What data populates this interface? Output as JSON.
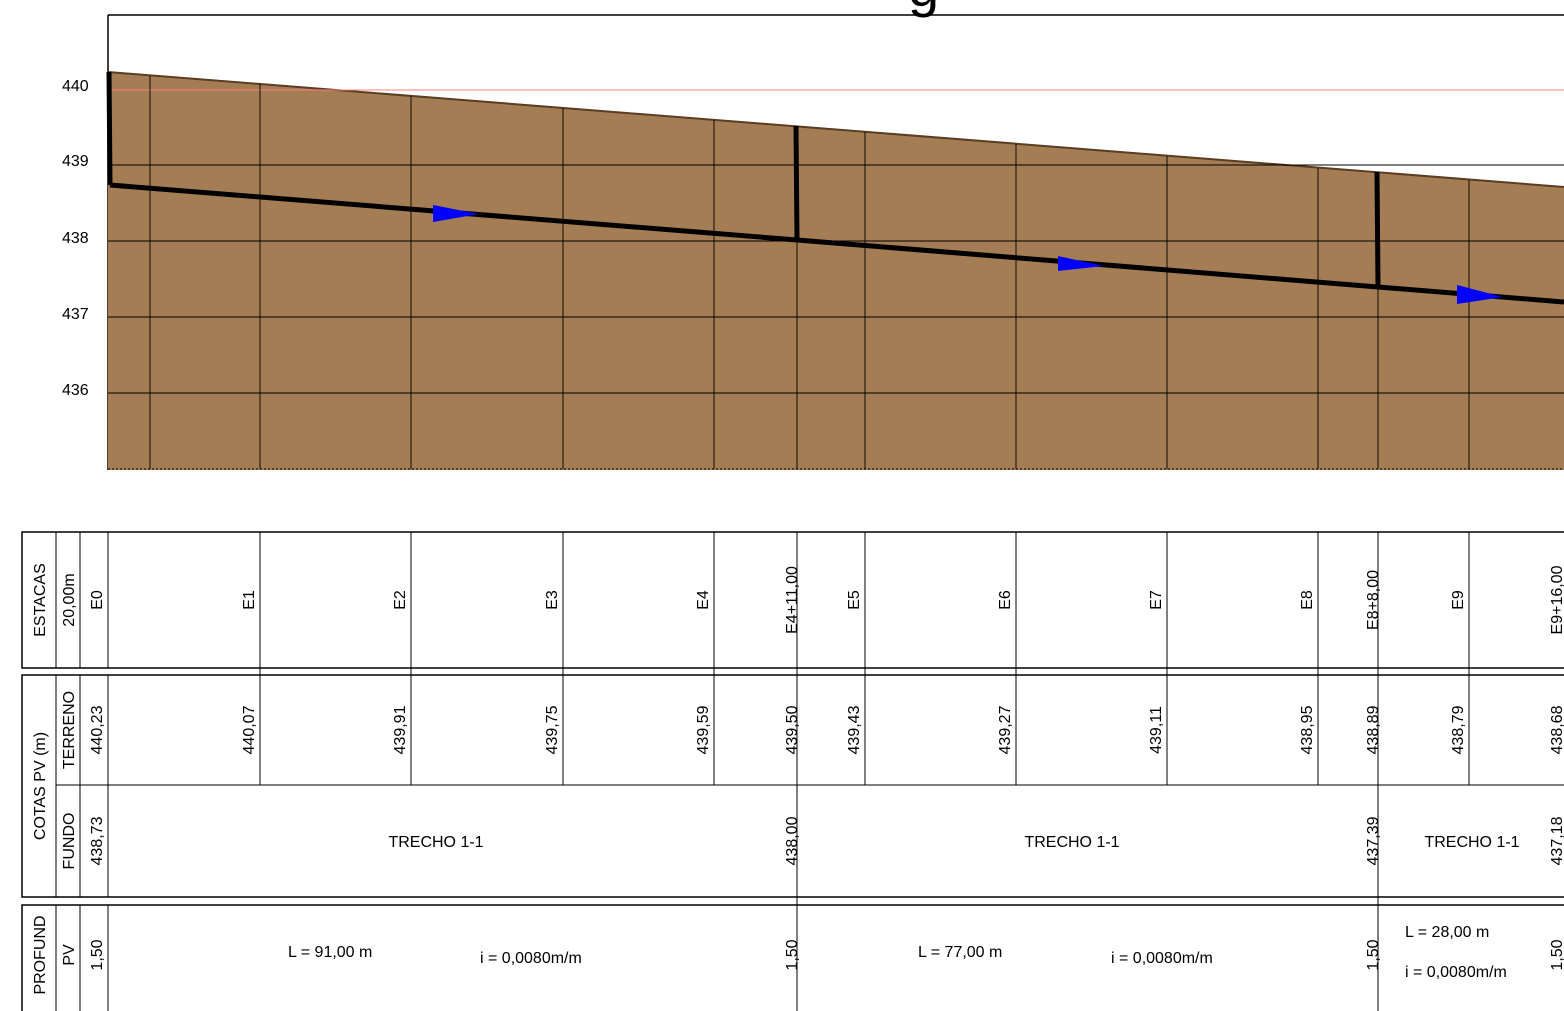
{
  "title_fragment": "g",
  "profile": {
    "elevation_ticks": [
      "440",
      "439",
      "438",
      "437",
      "436"
    ],
    "ground_color": "#A57D55",
    "pipe_color": "#000000",
    "flow_arrow_color": "#0000FF",
    "reference_line_color": "#FF8080"
  },
  "table": {
    "headers": {
      "estacas": "ESTACAS",
      "spacing": "20,00m",
      "cotas_pv": "COTAS PV (m)",
      "terreno": "TERRENO",
      "fundo": "FUNDO",
      "profund": "PROFUND",
      "pv": "PV"
    },
    "stations": [
      "E0",
      "E1",
      "E2",
      "E3",
      "E4",
      "E4+11,00",
      "E5",
      "E6",
      "E7",
      "E8",
      "E8+8,00",
      "E9",
      "E9+16,00"
    ],
    "terreno": [
      "440,23",
      "440,07",
      "439,91",
      "439,75",
      "439,59",
      "439,50",
      "439,43",
      "439,27",
      "439,11",
      "438,95",
      "438,89",
      "438,79",
      "438,68"
    ],
    "fundo": [
      "438,73",
      "438,00",
      "437,39",
      "437,18"
    ],
    "profund": [
      "1,50",
      "1,50",
      "1,50",
      "1,50"
    ],
    "segments": [
      {
        "name": "TRECHO 1-1",
        "length": "L = 91,00 m",
        "slope": "i = 0,0080m/m"
      },
      {
        "name": "TRECHO 1-1",
        "length": "L = 77,00 m",
        "slope": "i = 0,0080m/m"
      },
      {
        "name": "TRECHO 1-1",
        "length": "L = 28,00 m",
        "slope": "i = 0,0080m/m"
      }
    ]
  }
}
